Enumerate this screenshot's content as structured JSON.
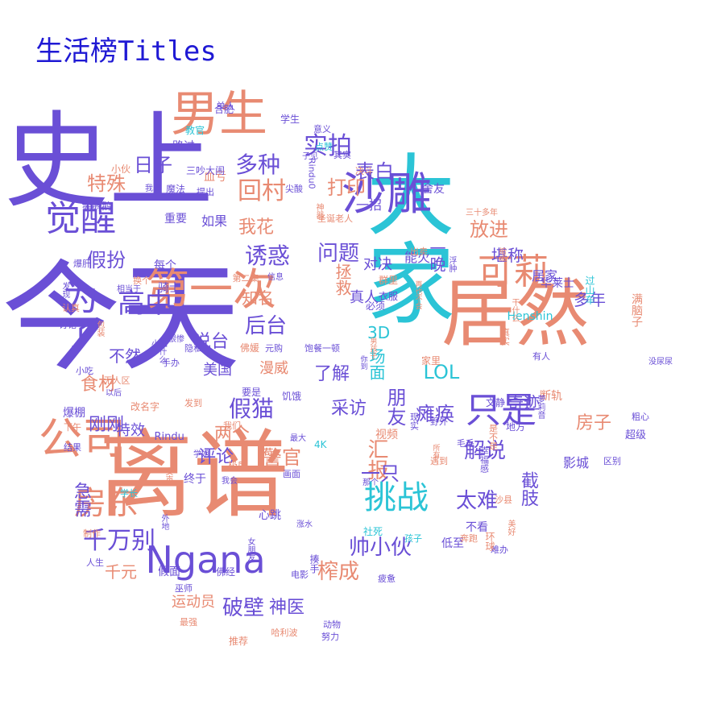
{
  "title": "生活榜Titles",
  "colors": {
    "purple": "#6a4fd6",
    "salmon": "#e88a72",
    "cyan": "#2bc4d6",
    "title": "#1f19d4"
  },
  "words": [
    {
      "text": "今天",
      "size": 148,
      "color": "purple",
      "orient": "h"
    },
    {
      "text": "史上",
      "size": 130,
      "color": "purple",
      "orient": "h"
    },
    {
      "text": "离谱",
      "size": 118,
      "color": "salmon",
      "orient": "h"
    },
    {
      "text": "大家",
      "size": 110,
      "color": "cyan",
      "orient": "v"
    },
    {
      "text": "居然",
      "size": 92,
      "color": "salmon",
      "orient": "h"
    },
    {
      "text": "男生",
      "size": 60,
      "color": "salmon",
      "orient": "h"
    },
    {
      "text": "沙雕",
      "size": 56,
      "color": "purple",
      "orient": "h"
    },
    {
      "text": "第一次",
      "size": 54,
      "color": "salmon",
      "orient": "h"
    },
    {
      "text": "公司",
      "size": 54,
      "color": "salmon",
      "orient": "h"
    },
    {
      "text": "Ngana",
      "size": 46,
      "color": "purple",
      "orient": "h"
    },
    {
      "text": "觉醒",
      "size": 44,
      "color": "purple",
      "orient": "h"
    },
    {
      "text": "为了",
      "size": 44,
      "color": "purple",
      "orient": "v"
    },
    {
      "text": "只是",
      "size": 44,
      "color": "purple",
      "orient": "h"
    },
    {
      "text": "可莉",
      "size": 44,
      "color": "salmon",
      "orient": "h"
    },
    {
      "text": "挑战",
      "size": 40,
      "color": "cyan",
      "orient": "h"
    },
    {
      "text": "房东",
      "size": 40,
      "color": "salmon",
      "orient": "h"
    },
    {
      "text": "高中",
      "size": 34,
      "color": "purple",
      "orient": "h"
    },
    {
      "text": "千万别",
      "size": 30,
      "color": "purple",
      "orient": "h"
    },
    {
      "text": "回村",
      "size": 30,
      "color": "salmon",
      "orient": "h"
    },
    {
      "text": "实拍",
      "size": 30,
      "color": "purple",
      "orient": "h"
    },
    {
      "text": "多种",
      "size": 28,
      "color": "purple",
      "orient": "h"
    },
    {
      "text": "诱惑",
      "size": 28,
      "color": "purple",
      "orient": "h"
    },
    {
      "text": "假猫",
      "size": 28,
      "color": "purple",
      "orient": "h"
    },
    {
      "text": "问题",
      "size": 26,
      "color": "purple",
      "orient": "h"
    },
    {
      "text": "后台",
      "size": 26,
      "color": "purple",
      "orient": "h"
    },
    {
      "text": "破壁",
      "size": 26,
      "color": "purple",
      "orient": "h"
    },
    {
      "text": "榨成",
      "size": 26,
      "color": "salmon",
      "orient": "h"
    },
    {
      "text": "帅小伙",
      "size": 26,
      "color": "purple",
      "orient": "h"
    },
    {
      "text": "太难",
      "size": 26,
      "color": "purple",
      "orient": "h"
    },
    {
      "text": "解说",
      "size": 26,
      "color": "purple",
      "orient": "h"
    },
    {
      "text": "汇报",
      "size": 26,
      "color": "salmon",
      "orient": "v"
    },
    {
      "text": "朋友",
      "size": 24,
      "color": "purple",
      "orient": "v"
    },
    {
      "text": "警官",
      "size": 24,
      "color": "salmon",
      "orient": "h"
    },
    {
      "text": "一只",
      "size": 24,
      "color": "purple",
      "orient": "h"
    },
    {
      "text": "瘫痪",
      "size": 24,
      "color": "purple",
      "orient": "h"
    },
    {
      "text": "LOL",
      "size": 24,
      "color": "cyan",
      "orient": "h"
    },
    {
      "text": "放进",
      "size": 24,
      "color": "salmon",
      "orient": "h"
    },
    {
      "text": "表白",
      "size": 24,
      "color": "purple",
      "orient": "h"
    },
    {
      "text": "打印",
      "size": 24,
      "color": "salmon",
      "orient": "h"
    },
    {
      "text": "日子",
      "size": 24,
      "color": "purple",
      "orient": "h"
    },
    {
      "text": "特殊",
      "size": 24,
      "color": "salmon",
      "orient": "h"
    },
    {
      "text": "假扮",
      "size": 24,
      "color": "purple",
      "orient": "h"
    },
    {
      "text": "食材",
      "size": 22,
      "color": "salmon",
      "orient": "h"
    },
    {
      "text": "刚刚",
      "size": 22,
      "color": "purple",
      "orient": "h"
    },
    {
      "text": "说台",
      "size": 22,
      "color": "purple",
      "orient": "h"
    },
    {
      "text": "两个",
      "size": 22,
      "color": "salmon",
      "orient": "h"
    },
    {
      "text": "我花",
      "size": 22,
      "color": "salmon",
      "orient": "h"
    },
    {
      "text": "采访",
      "size": 22,
      "color": "purple",
      "orient": "h"
    },
    {
      "text": "了解",
      "size": 22,
      "color": "purple",
      "orient": "h"
    },
    {
      "text": "神医",
      "size": 22,
      "color": "purple",
      "orient": "h"
    },
    {
      "text": "评论",
      "size": 22,
      "color": "purple",
      "orient": "h"
    },
    {
      "text": "奇迹",
      "size": 20,
      "color": "purple",
      "orient": "h"
    },
    {
      "text": "房子",
      "size": 22,
      "color": "salmon",
      "orient": "h"
    },
    {
      "text": "截肢",
      "size": 22,
      "color": "purple",
      "orient": "v"
    },
    {
      "text": "堪称",
      "size": 20,
      "color": "purple",
      "orient": "h"
    },
    {
      "text": "多年",
      "size": 20,
      "color": "purple",
      "orient": "h"
    },
    {
      "text": "不然",
      "size": 20,
      "color": "purple",
      "orient": "h"
    },
    {
      "text": "急需",
      "size": 22,
      "color": "purple",
      "orient": "v"
    },
    {
      "text": "场面",
      "size": 20,
      "color": "cyan",
      "orient": "v"
    },
    {
      "text": "千元",
      "size": 20,
      "color": "salmon",
      "orient": "h"
    },
    {
      "text": "运动员",
      "size": 18,
      "color": "salmon",
      "orient": "h"
    },
    {
      "text": "真人",
      "size": 18,
      "color": "purple",
      "orient": "h"
    },
    {
      "text": "一晚",
      "size": 20,
      "color": "purple",
      "orient": "v"
    },
    {
      "text": "拯救",
      "size": 20,
      "color": "salmon",
      "orient": "v"
    },
    {
      "text": "知名",
      "size": 20,
      "color": "salmon",
      "orient": "h"
    },
    {
      "text": "美国",
      "size": 18,
      "color": "purple",
      "orient": "h"
    },
    {
      "text": "漫威",
      "size": 18,
      "color": "salmon",
      "orient": "h"
    },
    {
      "text": "3D",
      "size": 20,
      "color": "cyan",
      "orient": "h"
    },
    {
      "text": "特效",
      "size": 18,
      "color": "purple",
      "orient": "h"
    },
    {
      "text": "对决",
      "size": 18,
      "color": "purple",
      "orient": "h"
    },
    {
      "text": "能火",
      "size": 16,
      "color": "purple",
      "orient": "h"
    },
    {
      "text": "影城",
      "size": 16,
      "color": "purple",
      "orient": "h"
    },
    {
      "text": "居家",
      "size": 16,
      "color": "purple",
      "orient": "h"
    },
    {
      "text": "血亏",
      "size": 14,
      "color": "salmon",
      "orient": "h"
    },
    {
      "text": "一招",
      "size": 16,
      "color": "purple",
      "orient": "h"
    },
    {
      "text": "如果",
      "size": 16,
      "color": "purple",
      "orient": "h"
    },
    {
      "text": "重要",
      "size": 14,
      "color": "purple",
      "orient": "h"
    },
    {
      "text": "每个",
      "size": 14,
      "color": "purple",
      "orient": "h"
    },
    {
      "text": "骑士",
      "size": 14,
      "color": "purple",
      "orient": "h"
    },
    {
      "text": "舍友",
      "size": 14,
      "color": "purple",
      "orient": "h"
    },
    {
      "text": "断轨",
      "size": 14,
      "color": "salmon",
      "orient": "h"
    },
    {
      "text": "Henshin",
      "size": 14,
      "color": "cyan",
      "orient": "h"
    },
    {
      "text": "华莱士",
      "size": 14,
      "color": "purple",
      "orient": "h"
    },
    {
      "text": "单人",
      "size": 12,
      "color": "purple",
      "orient": "h"
    },
    {
      "text": "路过",
      "size": 14,
      "color": "purple",
      "orient": "h"
    },
    {
      "text": "视频",
      "size": 14,
      "color": "salmon",
      "orient": "h"
    },
    {
      "text": "心跳",
      "size": 14,
      "color": "purple",
      "orient": "h"
    },
    {
      "text": "假面",
      "size": 14,
      "color": "purple",
      "orient": "h"
    },
    {
      "text": "终于",
      "size": 14,
      "color": "purple",
      "orient": "h"
    },
    {
      "text": "低至",
      "size": 14,
      "color": "purple",
      "orient": "h"
    },
    {
      "text": "不看",
      "size": 14,
      "color": "purple",
      "orient": "h"
    },
    {
      "text": "爆棚",
      "size": 14,
      "color": "purple",
      "orient": "h"
    },
    {
      "text": "改名字",
      "size": 12,
      "color": "salmon",
      "orient": "h"
    },
    {
      "text": "要是",
      "size": 12,
      "color": "purple",
      "orient": "h"
    },
    {
      "text": "Rindu",
      "size": 13,
      "color": "purple",
      "orient": "h"
    },
    {
      "text": "小伙",
      "size": 12,
      "color": "salmon",
      "orient": "h"
    },
    {
      "text": "鹅鹅鹅",
      "size": 12,
      "color": "purple",
      "orient": "h"
    },
    {
      "text": "三吵大闹",
      "size": 12,
      "color": "purple",
      "orient": "h"
    },
    {
      "text": "魔法",
      "size": 12,
      "color": "purple",
      "orient": "h"
    },
    {
      "text": "合肥",
      "size": 12,
      "color": "purple",
      "orient": "h"
    },
    {
      "text": "教官",
      "size": 12,
      "color": "cyan",
      "orient": "h"
    },
    {
      "text": "学生",
      "size": 12,
      "color": "purple",
      "orient": "h"
    },
    {
      "text": "意义",
      "size": 11,
      "color": "purple",
      "orient": "h"
    },
    {
      "text": "其实",
      "size": 11,
      "color": "purple",
      "orient": "h"
    },
    {
      "text": "尖酸",
      "size": 11,
      "color": "purple",
      "orient": "h"
    },
    {
      "text": "小吃",
      "size": 11,
      "color": "purple",
      "orient": "h"
    },
    {
      "text": "无人区",
      "size": 11,
      "color": "salmon",
      "orient": "h"
    },
    {
      "text": "认真",
      "size": 11,
      "color": "salmon",
      "orient": "h"
    },
    {
      "text": "手办",
      "size": 11,
      "color": "purple",
      "orient": "h"
    },
    {
      "text": "隐私",
      "size": 11,
      "color": "purple",
      "orient": "h"
    },
    {
      "text": "佛媛",
      "size": 12,
      "color": "salmon",
      "orient": "h"
    },
    {
      "text": "元购",
      "size": 11,
      "color": "purple",
      "orient": "h"
    },
    {
      "text": "饱餐一顿",
      "size": 11,
      "color": "purple",
      "orient": "h"
    },
    {
      "text": "饥饿",
      "size": 12,
      "color": "purple",
      "orient": "h"
    },
    {
      "text": "发到",
      "size": 11,
      "color": "salmon",
      "orient": "h"
    },
    {
      "text": "我们",
      "size": 11,
      "color": "salmon",
      "orient": "h"
    },
    {
      "text": "最大",
      "size": 10,
      "color": "purple",
      "orient": "h"
    },
    {
      "text": "极度",
      "size": 12,
      "color": "salmon",
      "orient": "h"
    },
    {
      "text": "画面",
      "size": 11,
      "color": "purple",
      "orient": "h"
    },
    {
      "text": "4K",
      "size": 12,
      "color": "cyan",
      "orient": "h"
    },
    {
      "text": "学长",
      "size": 11,
      "color": "cyan",
      "orient": "h"
    },
    {
      "text": "佛经",
      "size": 12,
      "color": "purple",
      "orient": "h"
    },
    {
      "text": "电影",
      "size": 11,
      "color": "purple",
      "orient": "h"
    },
    {
      "text": "巫师",
      "size": 11,
      "color": "purple",
      "orient": "h"
    },
    {
      "text": "最强",
      "size": 11,
      "color": "salmon",
      "orient": "h"
    },
    {
      "text": "推荐",
      "size": 12,
      "color": "salmon",
      "orient": "h"
    },
    {
      "text": "哈利波",
      "size": 11,
      "color": "salmon",
      "orient": "h"
    },
    {
      "text": "努力",
      "size": 11,
      "color": "purple",
      "orient": "h"
    },
    {
      "text": "动物",
      "size": 11,
      "color": "purple",
      "orient": "h"
    },
    {
      "text": "疲惫",
      "size": 11,
      "color": "purple",
      "orient": "h"
    },
    {
      "text": "社死",
      "size": 12,
      "color": "cyan",
      "orient": "h"
    },
    {
      "text": "孩子",
      "size": 11,
      "color": "cyan",
      "orient": "h"
    },
    {
      "text": "奔跑",
      "size": 11,
      "color": "salmon",
      "orient": "h"
    },
    {
      "text": "难办",
      "size": 11,
      "color": "purple",
      "orient": "h"
    },
    {
      "text": "遇到",
      "size": 11,
      "color": "salmon",
      "orient": "h"
    },
    {
      "text": "毛毛",
      "size": 11,
      "color": "purple",
      "orient": "h"
    },
    {
      "text": "野外",
      "size": 11,
      "color": "purple",
      "orient": "h"
    },
    {
      "text": "地方",
      "size": 12,
      "color": "purple",
      "orient": "h"
    },
    {
      "text": "文静",
      "size": 12,
      "color": "purple",
      "orient": "h"
    },
    {
      "text": "家里",
      "size": 12,
      "color": "salmon",
      "orient": "h"
    },
    {
      "text": "有人",
      "size": 11,
      "color": "purple",
      "orient": "h"
    },
    {
      "text": "粗心",
      "size": 11,
      "color": "purple",
      "orient": "h"
    },
    {
      "text": "区别",
      "size": 11,
      "color": "purple",
      "orient": "h"
    },
    {
      "text": "超级",
      "size": 13,
      "color": "purple",
      "orient": "h"
    },
    {
      "text": "没尿尿",
      "size": 10,
      "color": "purple",
      "orient": "h"
    },
    {
      "text": "过山车",
      "size": 12,
      "color": "cyan",
      "orient": "v"
    },
    {
      "text": "必须",
      "size": 12,
      "color": "purple",
      "orient": "h"
    },
    {
      "text": "衣服",
      "size": 12,
      "color": "purple",
      "orient": "h"
    },
    {
      "text": "群里",
      "size": 12,
      "color": "salmon",
      "orient": "h"
    },
    {
      "text": "信息",
      "size": 10,
      "color": "purple",
      "orient": "h"
    },
    {
      "text": "第二集",
      "size": 11,
      "color": "salmon",
      "orient": "h"
    },
    {
      "text": "我要",
      "size": 10,
      "color": "purple",
      "orient": "h"
    },
    {
      "text": "提出",
      "size": 11,
      "color": "purple",
      "orient": "h"
    },
    {
      "text": "子见",
      "size": 10,
      "color": "purple",
      "orient": "h"
    },
    {
      "text": "点赞",
      "size": 11,
      "color": "cyan",
      "orient": "h"
    },
    {
      "text": "决斗",
      "size": 11,
      "color": "salmon",
      "orient": "h"
    },
    {
      "text": "三十多年",
      "size": 10,
      "color": "salmon",
      "orient": "h"
    },
    {
      "text": "出卖",
      "size": 11,
      "color": "salmon",
      "orient": "h"
    },
    {
      "text": "圣诞老人",
      "size": 11,
      "color": "salmon",
      "orient": "h"
    },
    {
      "text": "下午",
      "size": 11,
      "color": "salmon",
      "orient": "h"
    },
    {
      "text": "结果",
      "size": 11,
      "color": "purple",
      "orient": "h"
    },
    {
      "text": "人生",
      "size": 11,
      "color": "purple",
      "orient": "h"
    },
    {
      "text": "制作",
      "size": 11,
      "color": "salmon",
      "orient": "h"
    },
    {
      "text": "相当于",
      "size": 10,
      "color": "purple",
      "orient": "h"
    },
    {
      "text": "讨论",
      "size": 11,
      "color": "purple",
      "orient": "h"
    },
    {
      "text": "爆肝",
      "size": 11,
      "color": "purple",
      "orient": "h"
    },
    {
      "text": "换个",
      "size": 11,
      "color": "salmon",
      "orient": "h"
    },
    {
      "text": "小品",
      "size": 10,
      "color": "purple",
      "orient": "h"
    },
    {
      "text": "很惨",
      "size": 10,
      "color": "purple",
      "orient": "h"
    },
    {
      "text": "以后",
      "size": 10,
      "color": "purple",
      "orient": "h"
    },
    {
      "text": "我会",
      "size": 10,
      "color": "purple",
      "orient": "h"
    },
    {
      "text": "那个",
      "size": 10,
      "color": "purple",
      "orient": "h"
    },
    {
      "text": "幸福感",
      "size": 11,
      "color": "purple",
      "orient": "v"
    },
    {
      "text": "是不是",
      "size": 11,
      "color": "salmon",
      "orient": "v"
    },
    {
      "text": "环球",
      "size": 12,
      "color": "salmon",
      "orient": "v"
    },
    {
      "text": "沙县",
      "size": 11,
      "color": "salmon",
      "orient": "h"
    },
    {
      "text": "再也不会",
      "size": 9,
      "color": "salmon",
      "orient": "v"
    },
    {
      "text": "Rindu0",
      "size": 11,
      "color": "purple",
      "orient": "v"
    },
    {
      "text": "满脑子",
      "size": 14,
      "color": "salmon",
      "orient": "v"
    },
    {
      "text": "真实",
      "size": 11,
      "color": "salmon",
      "orient": "v"
    },
    {
      "text": "干什么",
      "size": 10,
      "color": "salmon",
      "orient": "v"
    },
    {
      "text": "现实",
      "size": 11,
      "color": "purple",
      "orient": "v"
    },
    {
      "text": "萝莉音",
      "size": 10,
      "color": "purple",
      "orient": "v"
    },
    {
      "text": "外地",
      "size": 10,
      "color": "purple",
      "orient": "v"
    },
    {
      "text": "女朋友",
      "size": 10,
      "color": "purple",
      "orient": "v"
    },
    {
      "text": "揍手",
      "size": 12,
      "color": "purple",
      "orient": "v"
    },
    {
      "text": "包装",
      "size": 10,
      "color": "salmon",
      "orient": "v"
    },
    {
      "text": "发现",
      "size": 10,
      "color": "purple",
      "orient": "v"
    },
    {
      "text": "为什么",
      "size": 10,
      "color": "purple",
      "orient": "v"
    },
    {
      "text": "神器",
      "size": 10,
      "color": "salmon",
      "orient": "v"
    },
    {
      "text": "美好",
      "size": 10,
      "color": "salmon",
      "orient": "v"
    },
    {
      "text": "男孩子",
      "size": 9,
      "color": "salmon",
      "orient": "v"
    },
    {
      "text": "浮肿",
      "size": 10,
      "color": "purple",
      "orient": "v"
    },
    {
      "text": "缩成",
      "size": 9,
      "color": "salmon",
      "orient": "v"
    },
    {
      "text": "女声",
      "size": 10,
      "color": "salmon",
      "orient": "v"
    },
    {
      "text": "所有",
      "size": 9,
      "color": "salmon",
      "orient": "v"
    },
    {
      "text": "涨水",
      "size": 10,
      "color": "purple",
      "orient": "h"
    },
    {
      "text": "学姐",
      "size": 10,
      "color": "purple",
      "orient": "h"
    },
    {
      "text": "你到",
      "size": 9,
      "color": "purple",
      "orient": "v"
    }
  ]
}
